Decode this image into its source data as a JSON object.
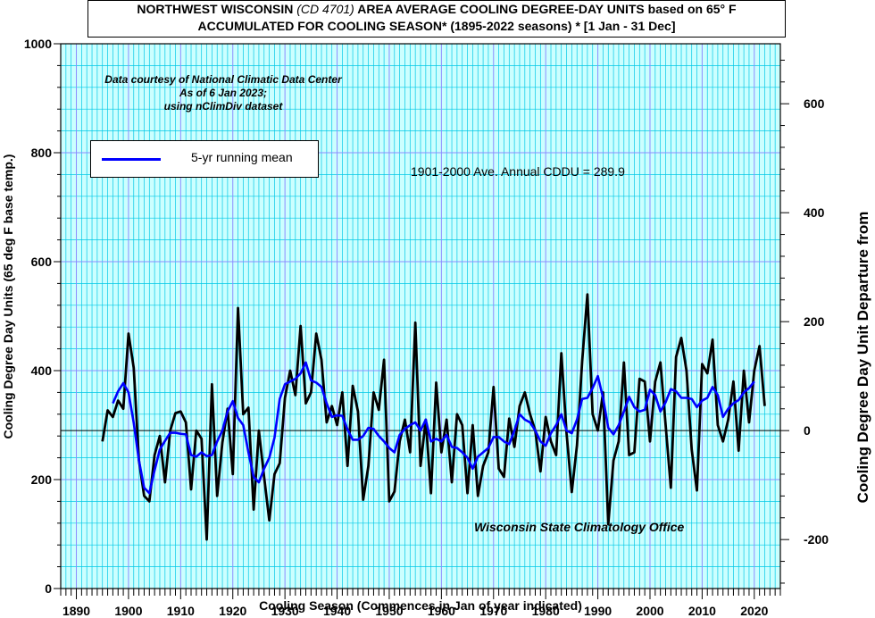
{
  "title": {
    "line1_a": "NORTHWEST WISCONSIN ",
    "line1_b": "(CD 4701)",
    "line1_c": " AREA AVERAGE COOLING DEGREE-DAY UNITS based on 65° F",
    "line2": "ACCUMULATED FOR COOLING SEASON*  (1895-2022 seasons) * [1 Jan - 31 Dec]"
  },
  "credit": {
    "line1": "Data courtesy of National Climatic Data Center",
    "line2": "As of 6 Jan  2023;",
    "line3": "using nClimDiv dataset"
  },
  "legend": {
    "label": "5-yr running mean"
  },
  "average_note": "1901-2000 Ave. Annual CDDU = 289.9",
  "office": "Wisconsin State Climatology Office",
  "colors": {
    "plot_bg": "#ccffff",
    "minor_grid": "#00c8e6",
    "major_grid": "#8c8cff",
    "annual_line": "#000000",
    "mean_line": "#0000ff"
  },
  "chart_data": {
    "type": "line",
    "title": "NORTHWEST WISCONSIN (CD 4701) AREA AVERAGE COOLING DEGREE-DAY UNITS based on 65° F ACCUMULATED FOR COOLING SEASON* (1895-2022 seasons) * [1 Jan - 31 Dec]",
    "xlabel": "Cooling Season (Commences in Jan of year indicated)",
    "ylabel": "Cooling Degree Day Units (65 deg F base temp.)",
    "y2label": "Cooling Degree Day Unit Departure from average",
    "xlim": [
      1887,
      2025
    ],
    "ylim": [
      0,
      1000
    ],
    "y2lim": [
      -289.9,
      710.1
    ],
    "xticks": [
      1890,
      1900,
      1910,
      1920,
      1930,
      1940,
      1950,
      1960,
      1970,
      1980,
      1990,
      2000,
      2010,
      2020
    ],
    "yticks": [
      0,
      200,
      400,
      600,
      800,
      1000
    ],
    "y2ticks": [
      -200,
      0,
      200,
      400,
      600
    ],
    "average": 289.9,
    "grid": true,
    "legend_position": "top-left",
    "x": [
      1895,
      1896,
      1897,
      1898,
      1899,
      1900,
      1901,
      1902,
      1903,
      1904,
      1905,
      1906,
      1907,
      1908,
      1909,
      1910,
      1911,
      1912,
      1913,
      1914,
      1915,
      1916,
      1917,
      1918,
      1919,
      1920,
      1921,
      1922,
      1923,
      1924,
      1925,
      1926,
      1927,
      1928,
      1929,
      1930,
      1931,
      1932,
      1933,
      1934,
      1935,
      1936,
      1937,
      1938,
      1939,
      1940,
      1941,
      1942,
      1943,
      1944,
      1945,
      1946,
      1947,
      1948,
      1949,
      1950,
      1951,
      1952,
      1953,
      1954,
      1955,
      1956,
      1957,
      1958,
      1959,
      1960,
      1961,
      1962,
      1963,
      1964,
      1965,
      1966,
      1967,
      1968,
      1969,
      1970,
      1971,
      1972,
      1973,
      1974,
      1975,
      1976,
      1977,
      1978,
      1979,
      1980,
      1981,
      1982,
      1983,
      1984,
      1985,
      1986,
      1987,
      1988,
      1989,
      1990,
      1991,
      1992,
      1993,
      1994,
      1995,
      1996,
      1997,
      1998,
      1999,
      2000,
      2001,
      2002,
      2003,
      2004,
      2005,
      2006,
      2007,
      2008,
      2009,
      2010,
      2011,
      2012,
      2013,
      2014,
      2015,
      2016,
      2017,
      2018,
      2019,
      2020,
      2021,
      2022
    ],
    "series": [
      {
        "name": "",
        "values": [
          270,
          327,
          315,
          345,
          330,
          468,
          405,
          235,
          170,
          160,
          245,
          280,
          195,
          290,
          322,
          325,
          305,
          182,
          290,
          275,
          90,
          375,
          170,
          268,
          330,
          210,
          515,
          320,
          332,
          145,
          290,
          205,
          125,
          210,
          230,
          350,
          400,
          355,
          482,
          340,
          360,
          468,
          420,
          305,
          335,
          300,
          360,
          225,
          372,
          325,
          163,
          225,
          360,
          328,
          420,
          160,
          178,
          270,
          310,
          250,
          488,
          225,
          310,
          175,
          378,
          250,
          310,
          195,
          320,
          300,
          175,
          300,
          170,
          225,
          250,
          370,
          220,
          205,
          312,
          260,
          335,
          360,
          320,
          290,
          215,
          315,
          270,
          245,
          432,
          285,
          177,
          263,
          418,
          540,
          320,
          290,
          360,
          118,
          235,
          270,
          415,
          245,
          250,
          385,
          380,
          270,
          380,
          415,
          300,
          185,
          425,
          460,
          400,
          255,
          180,
          412,
          395,
          457,
          300,
          270,
          310,
          380,
          253,
          400,
          305,
          400,
          445,
          335
        ]
      },
      {
        "name": "5-yr running mean",
        "values": [
          null,
          null,
          340,
          362,
          377,
          360,
          304,
          235,
          185,
          175,
          217,
          255,
          271,
          286,
          286,
          284,
          283,
          245,
          242,
          250,
          243,
          245,
          270,
          290,
          325,
          344,
          313,
          300,
          250,
          205,
          195,
          220,
          240,
          277,
          348,
          375,
          380,
          385,
          395,
          415,
          382,
          378,
          370,
          340,
          315,
          318,
          317,
          292,
          273,
          273,
          280,
          295,
          293,
          280,
          270,
          258,
          250,
          282,
          293,
          300,
          305,
          290,
          310,
          270,
          275,
          270,
          282,
          260,
          258,
          250,
          240,
          220,
          242,
          250,
          258,
          278,
          278,
          270,
          265,
          290,
          320,
          310,
          305,
          290,
          270,
          262,
          285,
          300,
          320,
          290,
          285,
          310,
          348,
          350,
          368,
          390,
          350,
          295,
          283,
          300,
          325,
          352,
          333,
          325,
          328,
          365,
          355,
          325,
          342,
          366,
          362,
          350,
          350,
          348,
          333,
          345,
          350,
          370,
          355,
          315,
          330,
          340,
          346,
          360,
          368,
          380,
          null,
          null
        ]
      }
    ]
  },
  "note_axes": {
    "xlabel": "Cooling Season (Commences in Jan of year indicated)",
    "ylabel": "Cooling Degree Day Units (65 deg F base temp.)",
    "y2label": "Cooling Degree Day Unit Departure from average"
  }
}
